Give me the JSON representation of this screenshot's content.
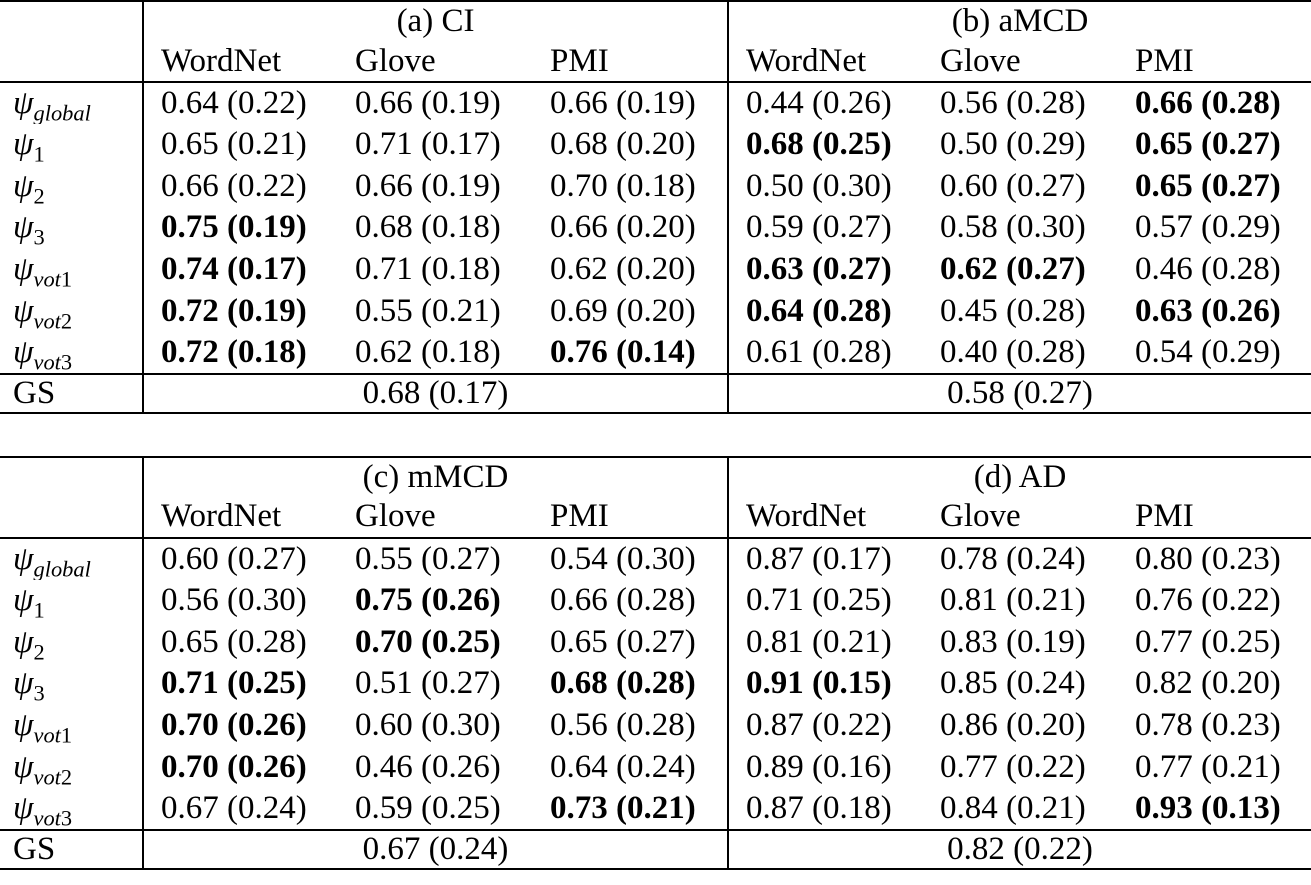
{
  "colors": {
    "background": "#ffffff",
    "text": "#000000",
    "rule": "#000000"
  },
  "tables": [
    {
      "name": "top",
      "gs_label": "GS",
      "panels": [
        {
          "title": "(a) CI",
          "columns": [
            "WordNet",
            "Glove",
            "PMI"
          ],
          "gs_value": "0.68 (0.17)"
        },
        {
          "title": "(b) aMCD",
          "columns": [
            "WordNet",
            "Glove",
            "PMI"
          ],
          "gs_value": "0.58 (0.27)"
        }
      ],
      "rows": [
        {
          "label": {
            "base": "ψ",
            "sub_letters": "global",
            "sub_digits": ""
          },
          "cells": [
            {
              "t": "0.64 (0.22)",
              "b": 0
            },
            {
              "t": "0.66 (0.19)",
              "b": 0
            },
            {
              "t": "0.66 (0.19)",
              "b": 0
            },
            {
              "t": "0.44 (0.26)",
              "b": 0
            },
            {
              "t": "0.56 (0.28)",
              "b": 0
            },
            {
              "t": "0.66 (0.28)",
              "b": 1
            }
          ]
        },
        {
          "label": {
            "base": "ψ",
            "sub_letters": "",
            "sub_digits": "1"
          },
          "cells": [
            {
              "t": "0.65 (0.21)",
              "b": 0
            },
            {
              "t": "0.71 (0.17)",
              "b": 0
            },
            {
              "t": "0.68 (0.20)",
              "b": 0
            },
            {
              "t": "0.68 (0.25)",
              "b": 1
            },
            {
              "t": "0.50 (0.29)",
              "b": 0
            },
            {
              "t": "0.65 (0.27)",
              "b": 1
            }
          ]
        },
        {
          "label": {
            "base": "ψ",
            "sub_letters": "",
            "sub_digits": "2"
          },
          "cells": [
            {
              "t": "0.66 (0.22)",
              "b": 0
            },
            {
              "t": "0.66 (0.19)",
              "b": 0
            },
            {
              "t": "0.70 (0.18)",
              "b": 0
            },
            {
              "t": "0.50 (0.30)",
              "b": 0
            },
            {
              "t": "0.60 (0.27)",
              "b": 0
            },
            {
              "t": "0.65 (0.27)",
              "b": 1
            }
          ]
        },
        {
          "label": {
            "base": "ψ",
            "sub_letters": "",
            "sub_digits": "3"
          },
          "cells": [
            {
              "t": "0.75 (0.19)",
              "b": 1
            },
            {
              "t": "0.68 (0.18)",
              "b": 0
            },
            {
              "t": "0.66 (0.20)",
              "b": 0
            },
            {
              "t": "0.59 (0.27)",
              "b": 0
            },
            {
              "t": "0.58 (0.30)",
              "b": 0
            },
            {
              "t": "0.57 (0.29)",
              "b": 0
            }
          ]
        },
        {
          "label": {
            "base": "ψ",
            "sub_letters": "vot",
            "sub_digits": "1"
          },
          "cells": [
            {
              "t": "0.74 (0.17)",
              "b": 1
            },
            {
              "t": "0.71 (0.18)",
              "b": 0
            },
            {
              "t": "0.62 (0.20)",
              "b": 0
            },
            {
              "t": "0.63 (0.27)",
              "b": 1
            },
            {
              "t": "0.62 (0.27)",
              "b": 1
            },
            {
              "t": "0.46 (0.28)",
              "b": 0
            }
          ]
        },
        {
          "label": {
            "base": "ψ",
            "sub_letters": "vot",
            "sub_digits": "2"
          },
          "cells": [
            {
              "t": "0.72 (0.19)",
              "b": 1
            },
            {
              "t": "0.55 (0.21)",
              "b": 0
            },
            {
              "t": "0.69 (0.20)",
              "b": 0
            },
            {
              "t": "0.64 (0.28)",
              "b": 1
            },
            {
              "t": "0.45 (0.28)",
              "b": 0
            },
            {
              "t": "0.63 (0.26)",
              "b": 1
            }
          ]
        },
        {
          "label": {
            "base": "ψ",
            "sub_letters": "vot",
            "sub_digits": "3"
          },
          "cells": [
            {
              "t": "0.72 (0.18)",
              "b": 1
            },
            {
              "t": "0.62 (0.18)",
              "b": 0
            },
            {
              "t": "0.76 (0.14)",
              "b": 1
            },
            {
              "t": "0.61 (0.28)",
              "b": 0
            },
            {
              "t": "0.40 (0.28)",
              "b": 0
            },
            {
              "t": "0.54 (0.29)",
              "b": 0
            }
          ]
        }
      ]
    },
    {
      "name": "bottom",
      "gs_label": "GS",
      "panels": [
        {
          "title": "(c) mMCD",
          "columns": [
            "WordNet",
            "Glove",
            "PMI"
          ],
          "gs_value": "0.67 (0.24)"
        },
        {
          "title": "(d) AD",
          "columns": [
            "WordNet",
            "Glove",
            "PMI"
          ],
          "gs_value": "0.82 (0.22)"
        }
      ],
      "rows": [
        {
          "label": {
            "base": "ψ",
            "sub_letters": "global",
            "sub_digits": ""
          },
          "cells": [
            {
              "t": "0.60 (0.27)",
              "b": 0
            },
            {
              "t": "0.55 (0.27)",
              "b": 0
            },
            {
              "t": "0.54 (0.30)",
              "b": 0
            },
            {
              "t": "0.87 (0.17)",
              "b": 0
            },
            {
              "t": "0.78 (0.24)",
              "b": 0
            },
            {
              "t": "0.80 (0.23)",
              "b": 0
            }
          ]
        },
        {
          "label": {
            "base": "ψ",
            "sub_letters": "",
            "sub_digits": "1"
          },
          "cells": [
            {
              "t": "0.56 (0.30)",
              "b": 0
            },
            {
              "t": "0.75 (0.26)",
              "b": 1
            },
            {
              "t": "0.66 (0.28)",
              "b": 0
            },
            {
              "t": "0.71 (0.25)",
              "b": 0
            },
            {
              "t": "0.81 (0.21)",
              "b": 0
            },
            {
              "t": "0.76 (0.22)",
              "b": 0
            }
          ]
        },
        {
          "label": {
            "base": "ψ",
            "sub_letters": "",
            "sub_digits": "2"
          },
          "cells": [
            {
              "t": "0.65 (0.28)",
              "b": 0
            },
            {
              "t": "0.70 (0.25)",
              "b": 1
            },
            {
              "t": "0.65 (0.27)",
              "b": 0
            },
            {
              "t": "0.81 (0.21)",
              "b": 0
            },
            {
              "t": "0.83 (0.19)",
              "b": 0
            },
            {
              "t": "0.77 (0.25)",
              "b": 0
            }
          ]
        },
        {
          "label": {
            "base": "ψ",
            "sub_letters": "",
            "sub_digits": "3"
          },
          "cells": [
            {
              "t": "0.71 (0.25)",
              "b": 1
            },
            {
              "t": "0.51 (0.27)",
              "b": 0
            },
            {
              "t": "0.68 (0.28)",
              "b": 1
            },
            {
              "t": "0.91 (0.15)",
              "b": 1
            },
            {
              "t": "0.85 (0.24)",
              "b": 0
            },
            {
              "t": "0.82 (0.20)",
              "b": 0
            }
          ]
        },
        {
          "label": {
            "base": "ψ",
            "sub_letters": "vot",
            "sub_digits": "1"
          },
          "cells": [
            {
              "t": "0.70 (0.26)",
              "b": 1
            },
            {
              "t": "0.60 (0.30)",
              "b": 0
            },
            {
              "t": "0.56 (0.28)",
              "b": 0
            },
            {
              "t": "0.87 (0.22)",
              "b": 0
            },
            {
              "t": "0.86 (0.20)",
              "b": 0
            },
            {
              "t": "0.78 (0.23)",
              "b": 0
            }
          ]
        },
        {
          "label": {
            "base": "ψ",
            "sub_letters": "vot",
            "sub_digits": "2"
          },
          "cells": [
            {
              "t": "0.70 (0.26)",
              "b": 1
            },
            {
              "t": "0.46 (0.26)",
              "b": 0
            },
            {
              "t": "0.64 (0.24)",
              "b": 0
            },
            {
              "t": "0.89 (0.16)",
              "b": 0
            },
            {
              "t": "0.77 (0.22)",
              "b": 0
            },
            {
              "t": "0.77 (0.21)",
              "b": 0
            }
          ]
        },
        {
          "label": {
            "base": "ψ",
            "sub_letters": "vot",
            "sub_digits": "3"
          },
          "cells": [
            {
              "t": "0.67 (0.24)",
              "b": 0
            },
            {
              "t": "0.59 (0.25)",
              "b": 0
            },
            {
              "t": "0.73 (0.21)",
              "b": 1
            },
            {
              "t": "0.87 (0.18)",
              "b": 0
            },
            {
              "t": "0.84 (0.21)",
              "b": 0
            },
            {
              "t": "0.93 (0.13)",
              "b": 1
            }
          ]
        }
      ]
    }
  ]
}
